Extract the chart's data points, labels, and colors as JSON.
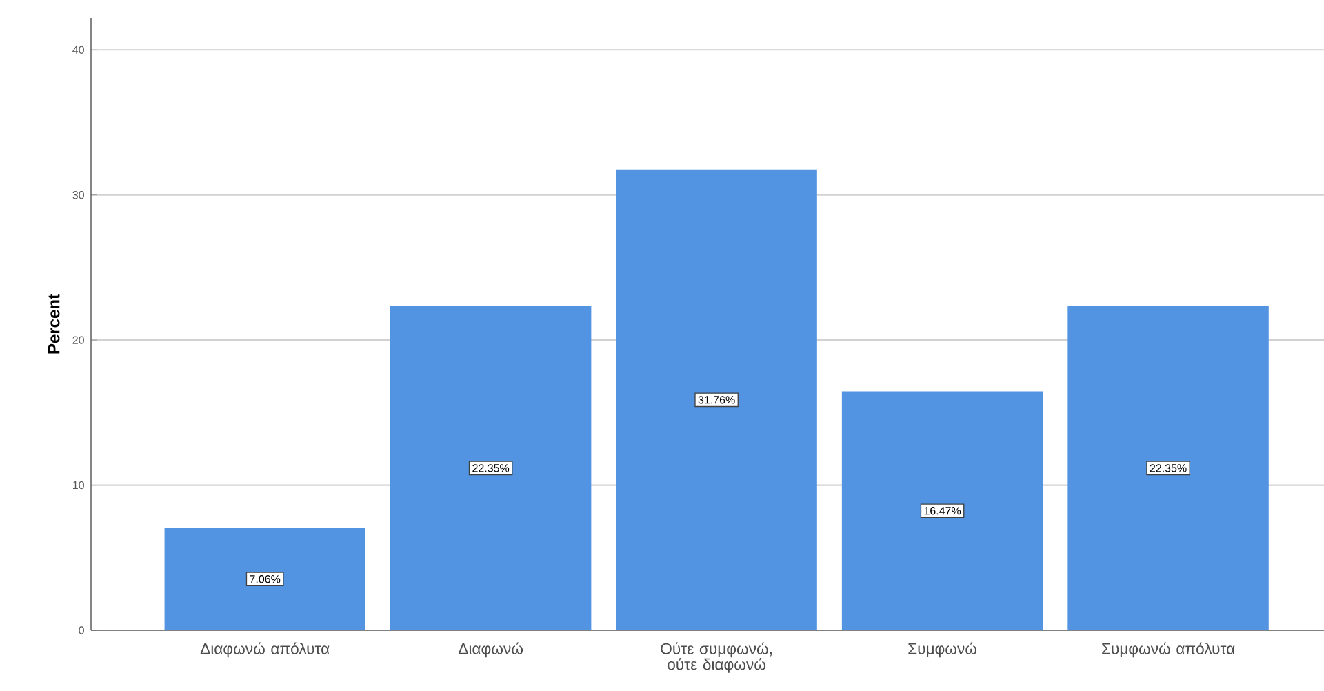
{
  "chart_data": {
    "type": "bar",
    "ylabel": "Percent",
    "categories": [
      "Διαφωνώ απόλυτα",
      "Διαφωνώ",
      "Ούτε συμφωνώ, ούτε διαφωνώ",
      "Συμφωνώ",
      "Συμφωνώ απόλυτα"
    ],
    "values": [
      7.06,
      22.35,
      31.76,
      16.47,
      22.35
    ],
    "value_labels": [
      "7.06%",
      "22.35%",
      "31.76%",
      "16.47%",
      "22.35%"
    ],
    "color": "#5294e2",
    "ylim": [
      0,
      42.2
    ],
    "yticks": [
      0,
      10,
      20,
      30,
      40
    ],
    "grid": "y"
  }
}
